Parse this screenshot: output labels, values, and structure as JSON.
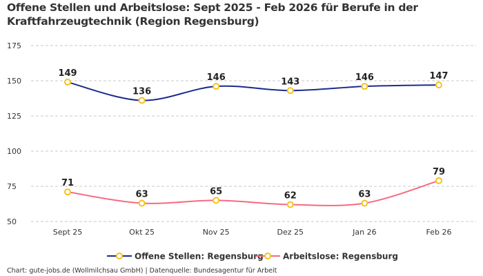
{
  "title": "Offene Stellen und Arbeitslose: Sept 2025 - Feb 2026 für Berufe in der Kraftfahrzeugtechnik (Region Regensburg)",
  "footer": "Chart: gute-jobs.de (Wollmilchsau GmbH) | Datenquelle: Bundesagentur für Arbeit",
  "chart_data": {
    "type": "line",
    "categories": [
      "Sept 25",
      "Okt 25",
      "Nov 25",
      "Dez 25",
      "Jan 26",
      "Feb 26"
    ],
    "series": [
      {
        "name": "Offene Stellen: Regensburg",
        "values": [
          149,
          136,
          146,
          143,
          146,
          147
        ],
        "color": "#1b2a8f"
      },
      {
        "name": "Arbeitslose: Regensburg",
        "values": [
          71,
          63,
          65,
          62,
          63,
          79
        ],
        "color": "#f7697f"
      }
    ],
    "marker_color": "#f5c21b",
    "ylim": [
      50,
      175
    ],
    "yticks": [
      50,
      75,
      100,
      125,
      150,
      175
    ],
    "grid": true,
    "legend": "bottom",
    "smooth": true
  }
}
